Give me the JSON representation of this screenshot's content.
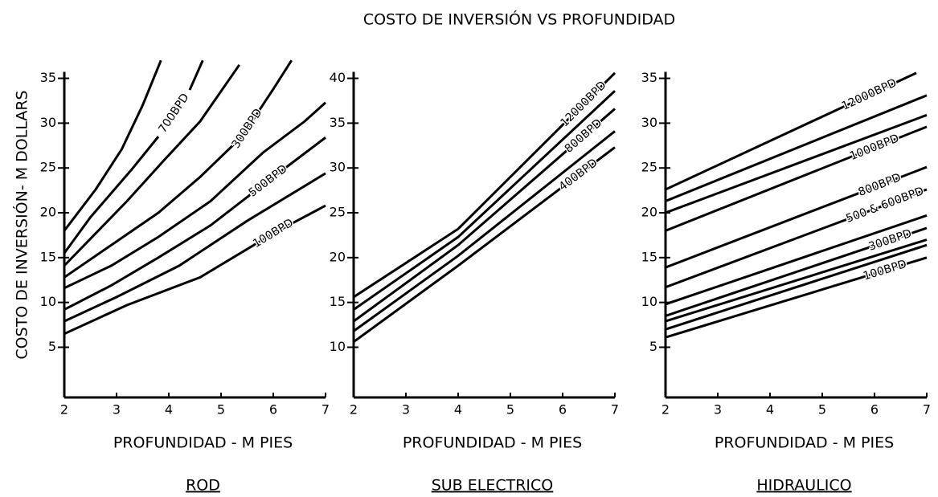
{
  "title": "COSTO DE INVERSIÓN VS PROFUNDIDAD",
  "ylabel": "COSTO DE INVERSIÓN- M DOLLARS",
  "chart_data": [
    {
      "type": "line",
      "subtitle": "ROD",
      "xlabel": "PROFUNDIDAD - M PIES",
      "color": "#000000",
      "xlim": [
        2,
        7
      ],
      "xticks": [
        2,
        3,
        4,
        5,
        6,
        7
      ],
      "ylim": [
        -0.6,
        37.2
      ],
      "yticks": [
        5,
        10,
        15,
        20,
        25,
        30,
        35
      ],
      "series": [
        {
          "x": [
            2,
            2.6,
            3.1,
            3.5,
            3.85
          ],
          "values": [
            18,
            22.6,
            27.1,
            32,
            37
          ]
        },
        {
          "name": "700BPD",
          "x": [
            2,
            2.5,
            3.3,
            3.8,
            4.1,
            4.4,
            4.65
          ],
          "values": [
            15.5,
            19.5,
            24.9,
            28.5,
            null,
            33.7,
            37
          ]
        },
        {
          "x": [
            2,
            2.6,
            3.2,
            3.9,
            4.6,
            5.35
          ],
          "values": [
            14.1,
            17.7,
            21.3,
            25.8,
            30.2,
            36.5
          ]
        },
        {
          "name": "300BPD",
          "x": [
            2,
            2.9,
            3.8,
            4.6,
            5.4,
            6,
            6.35
          ],
          "values": [
            12.8,
            16.4,
            20,
            24,
            28.5,
            33.8,
            37
          ]
        },
        {
          "x": [
            2,
            2.9,
            3.8,
            4.8,
            5.8,
            6.6,
            7
          ],
          "values": [
            11.6,
            14.1,
            17.3,
            21.3,
            26.7,
            30.2,
            32.3
          ]
        },
        {
          "name": "500BPD",
          "x": [
            2,
            2.9,
            3.8,
            4.8,
            5.8,
            7
          ],
          "values": [
            9.2,
            11.9,
            15,
            18.6,
            23.1,
            28.4
          ]
        },
        {
          "x": [
            2,
            3,
            4.2,
            5.5,
            7
          ],
          "values": [
            7.9,
            10.6,
            14.1,
            19.1,
            24.4
          ]
        },
        {
          "name": "100BPD",
          "x": [
            2,
            3.2,
            4.6,
            6,
            7
          ],
          "values": [
            6.5,
            9.7,
            12.8,
            17.7,
            20.8
          ]
        }
      ]
    },
    {
      "type": "line",
      "subtitle": "SUB ELECTRICO",
      "xlabel": "PROFUNDIDAD - M PIES",
      "color": "#000000",
      "xlim": [
        2,
        7
      ],
      "xticks": [
        2,
        3,
        4,
        5,
        6,
        7
      ],
      "ylim": [
        4.4,
        42.2
      ],
      "yticks": [
        10,
        15,
        20,
        25,
        30,
        35,
        40
      ],
      "series": [
        {
          "name": "12000BPD",
          "x": [
            2,
            4,
            7
          ],
          "values": [
            15.6,
            23.2,
            40.6
          ]
        },
        {
          "x": [
            2,
            4,
            7
          ],
          "values": [
            14.2,
            22.3,
            38.6
          ]
        },
        {
          "name": "800BPD",
          "x": [
            2,
            4,
            7
          ],
          "values": [
            12.9,
            21.4,
            36.6
          ]
        },
        {
          "x": [
            2,
            4,
            7
          ],
          "values": [
            11.8,
            20.2,
            34.1
          ]
        },
        {
          "name": "400BPD",
          "x": [
            2,
            4,
            7
          ],
          "values": [
            10.6,
            19.1,
            32.3
          ]
        }
      ]
    },
    {
      "type": "line",
      "subtitle": "HIDRAULICO",
      "xlabel": "PROFUNDIDAD - M PIES",
      "color": "#000000",
      "xlim": [
        2,
        7
      ],
      "xticks": [
        2,
        3,
        4,
        5,
        6,
        7
      ],
      "ylim": [
        -0.6,
        37.2
      ],
      "yticks": [
        5,
        10,
        15,
        20,
        25,
        30,
        35
      ],
      "series": [
        {
          "name": "12000BPD",
          "x": [
            2,
            6.8
          ],
          "values": [
            22.6,
            35.6
          ]
        },
        {
          "x": [
            2,
            7
          ],
          "values": [
            21.3,
            33.1
          ]
        },
        {
          "x": [
            2,
            7
          ],
          "values": [
            20,
            30.9
          ]
        },
        {
          "name": "1000BPD",
          "x": [
            2,
            7
          ],
          "values": [
            18,
            29.6
          ]
        },
        {
          "name": "800BPD",
          "x": [
            2,
            7
          ],
          "values": [
            13.9,
            25.1
          ]
        },
        {
          "name": "500 & 600BPD",
          "x": [
            2,
            7
          ],
          "values": [
            11.7,
            22.6
          ]
        },
        {
          "x": [
            2,
            7
          ],
          "values": [
            9.8,
            19.7
          ]
        },
        {
          "name": "300BPD",
          "x": [
            2,
            7
          ],
          "values": [
            8.5,
            18.3
          ]
        },
        {
          "x": [
            2,
            7
          ],
          "values": [
            7.9,
            17
          ]
        },
        {
          "x": [
            2,
            7
          ],
          "values": [
            7,
            16.4
          ]
        },
        {
          "name": "100BPD",
          "x": [
            2,
            7
          ],
          "values": [
            6.1,
            15
          ]
        }
      ]
    }
  ]
}
